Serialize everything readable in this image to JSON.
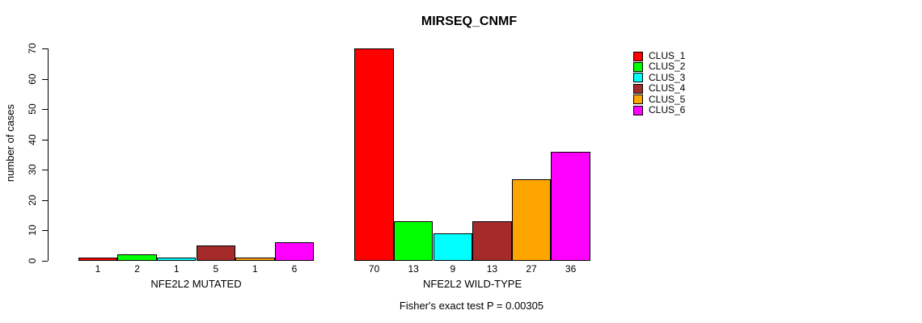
{
  "title": "MIRSEQ_CNMF",
  "y_axis": {
    "label": "number of cases",
    "ticks": [
      0,
      10,
      20,
      30,
      40,
      50,
      60,
      70
    ]
  },
  "footer": "Fisher's exact test P = 0.00305",
  "legend": {
    "items": [
      {
        "label": "CLUS_1",
        "color": "#ff0000"
      },
      {
        "label": "CLUS_2",
        "color": "#00ff00"
      },
      {
        "label": "CLUS_3",
        "color": "#00ffff"
      },
      {
        "label": "CLUS_4",
        "color": "#a52a2a"
      },
      {
        "label": "CLUS_5",
        "color": "#ffa500"
      },
      {
        "label": "CLUS_6",
        "color": "#ff00ff"
      }
    ]
  },
  "chart_data": {
    "type": "bar",
    "title": "MIRSEQ_CNMF",
    "xlabel": "",
    "ylabel": "number of cases",
    "ylim": [
      0,
      70
    ],
    "y_ticks": [
      0,
      10,
      20,
      30,
      40,
      50,
      60,
      70
    ],
    "grid": false,
    "legend_position": "top-right",
    "legend_entries": [
      "CLUS_1",
      "CLUS_2",
      "CLUS_3",
      "CLUS_4",
      "CLUS_5",
      "CLUS_6"
    ],
    "series_colors": [
      "#ff0000",
      "#00ff00",
      "#00ffff",
      "#a52a2a",
      "#ffa500",
      "#ff00ff"
    ],
    "groups": [
      {
        "label": "NFE2L2 MUTATED",
        "values": [
          1,
          2,
          1,
          5,
          1,
          6
        ]
      },
      {
        "label": "NFE2L2 WILD-TYPE",
        "values": [
          70,
          13,
          9,
          13,
          27,
          36
        ]
      }
    ],
    "bar_value_labels_shown": true,
    "annotation": "Fisher's exact test P = 0.00305"
  }
}
